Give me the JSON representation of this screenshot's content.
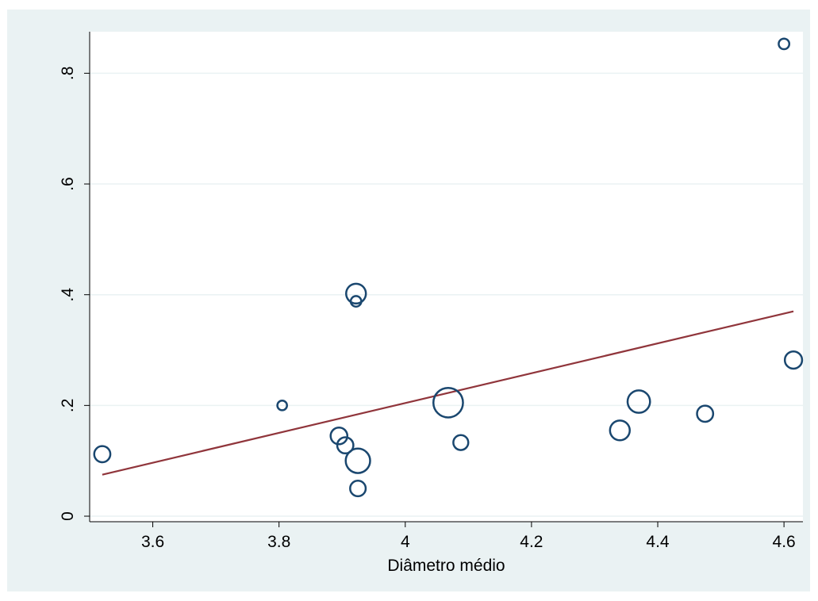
{
  "chart_data": {
    "type": "scatter",
    "title": "",
    "xlabel": "Diâmetro médio",
    "ylabel": "",
    "xlim": [
      3.5,
      4.63
    ],
    "ylim": [
      -0.01,
      0.875
    ],
    "x_ticks": [
      3.6,
      3.8,
      4.0,
      4.2,
      4.4,
      4.6
    ],
    "x_tick_labels": [
      "3.6",
      "3.8",
      "4",
      "4.2",
      "4.4",
      "4.6"
    ],
    "y_ticks": [
      0,
      0.2,
      0.4,
      0.6,
      0.8
    ],
    "y_tick_labels": [
      "0",
      ".2",
      ".4",
      ".6",
      ".8"
    ],
    "grid": "horizontal",
    "colors": {
      "background": "#eaf2f3",
      "plot_area": "#ffffff",
      "markers": "#1a476f",
      "fit_line": "#90353b",
      "grid": "#eaf2f3"
    },
    "series": [
      {
        "kind": "weighted_scatter",
        "points": [
          {
            "x": 3.52,
            "y": 0.112,
            "weight": 1.4
          },
          {
            "x": 3.805,
            "y": 0.2,
            "weight": 0.5
          },
          {
            "x": 3.895,
            "y": 0.145,
            "weight": 1.5
          },
          {
            "x": 3.905,
            "y": 0.128,
            "weight": 1.4
          },
          {
            "x": 3.922,
            "y": 0.402,
            "weight": 2.1
          },
          {
            "x": 3.922,
            "y": 0.388,
            "weight": 0.6
          },
          {
            "x": 3.925,
            "y": 0.1,
            "weight": 3.2
          },
          {
            "x": 3.925,
            "y": 0.05,
            "weight": 1.3
          },
          {
            "x": 4.068,
            "y": 0.205,
            "weight": 4.7
          },
          {
            "x": 4.088,
            "y": 0.133,
            "weight": 1.2
          },
          {
            "x": 4.34,
            "y": 0.155,
            "weight": 2.1
          },
          {
            "x": 4.37,
            "y": 0.207,
            "weight": 2.7
          },
          {
            "x": 4.475,
            "y": 0.185,
            "weight": 1.4
          },
          {
            "x": 4.6,
            "y": 0.853,
            "weight": 0.6
          },
          {
            "x": 4.615,
            "y": 0.282,
            "weight": 1.6
          }
        ]
      },
      {
        "kind": "fitted_line",
        "points": [
          {
            "x": 3.52,
            "y": 0.075
          },
          {
            "x": 4.615,
            "y": 0.37
          }
        ]
      }
    ]
  }
}
